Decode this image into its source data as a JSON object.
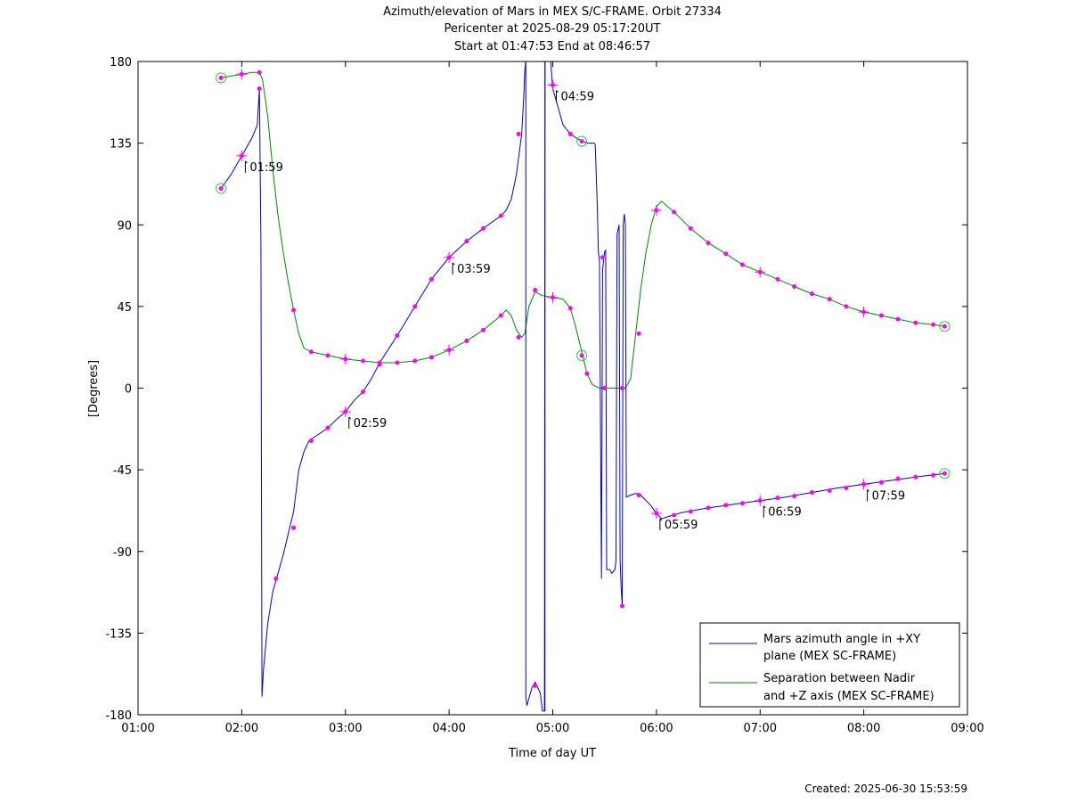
{
  "chart_data": {
    "type": "line",
    "title_lines": [
      "Azimuth/elevation of Mars in MEX S/C-FRAME.  Orbit 27334",
      "Pericenter at 2025-08-29 05:17:20UT",
      "Start at 01:47:53 End at 08:46:57"
    ],
    "xlabel": "Time of day UT",
    "ylabel": "[Degrees]",
    "xlim": [
      1,
      9
    ],
    "ylim": [
      -180,
      180
    ],
    "x_ticks": [
      1,
      2,
      3,
      4,
      5,
      6,
      7,
      8,
      9
    ],
    "x_tick_labels": [
      "01:00",
      "02:00",
      "03:00",
      "04:00",
      "05:00",
      "06:00",
      "07:00",
      "08:00",
      "09:00"
    ],
    "y_ticks": [
      180,
      135,
      90,
      45,
      0,
      -45,
      -90,
      -135,
      -180
    ],
    "y_tick_labels": [
      "180",
      "135",
      "90",
      "45",
      "0",
      "-45",
      "-90",
      "-135",
      "-180"
    ],
    "grid": false,
    "legend_position": "bottom-right",
    "series": [
      {
        "name": "Mars azimuth angle in +XY plane (MEX SC-FRAME)",
        "legend_lines": [
          "Mars azimuth angle in +XY",
          "plane (MEX SC-FRAME)"
        ],
        "color": "#0000cc",
        "points": [
          [
            1.8,
            110
          ],
          [
            1.9,
            118
          ],
          [
            2.0,
            128
          ],
          [
            2.1,
            138
          ],
          [
            2.15,
            145
          ],
          [
            2.17,
            165
          ],
          [
            2.185,
            80
          ],
          [
            2.19,
            -50
          ],
          [
            2.195,
            -170
          ],
          [
            2.21,
            -155
          ],
          [
            2.25,
            -130
          ],
          [
            2.3,
            -112
          ],
          [
            2.35,
            -102
          ],
          [
            2.4,
            -92
          ],
          [
            2.45,
            -80
          ],
          [
            2.5,
            -68
          ],
          [
            2.55,
            -45
          ],
          [
            2.6,
            -35
          ],
          [
            2.65,
            -29
          ],
          [
            2.7,
            -27
          ],
          [
            2.83,
            -22
          ],
          [
            2.9,
            -18
          ],
          [
            3.0,
            -13
          ],
          [
            3.08,
            -7
          ],
          [
            3.17,
            -2
          ],
          [
            3.25,
            5
          ],
          [
            3.33,
            14
          ],
          [
            3.5,
            29
          ],
          [
            3.67,
            45
          ],
          [
            3.83,
            60
          ],
          [
            4.0,
            72
          ],
          [
            4.17,
            81
          ],
          [
            4.33,
            88
          ],
          [
            4.5,
            95
          ],
          [
            4.55,
            98
          ],
          [
            4.6,
            104
          ],
          [
            4.65,
            118
          ],
          [
            4.7,
            140
          ],
          [
            4.72,
            160
          ],
          [
            4.73,
            175
          ],
          [
            4.74,
            180
          ]
        ],
        "break_after": 40,
        "points2": [
          [
            4.74,
            -170
          ],
          [
            4.75,
            -175
          ],
          [
            4.8,
            -165
          ],
          [
            4.83,
            -162
          ],
          [
            4.88,
            -168
          ],
          [
            4.9,
            -178
          ],
          [
            4.92,
            -178
          ],
          [
            4.925,
            180
          ]
        ],
        "points3": [
          [
            4.98,
            180
          ],
          [
            5.0,
            165
          ],
          [
            5.05,
            155
          ],
          [
            5.1,
            145
          ],
          [
            5.17,
            140
          ],
          [
            5.25,
            137
          ],
          [
            5.33,
            135
          ],
          [
            5.4,
            135
          ],
          [
            5.41,
            134
          ],
          [
            5.43,
            100
          ],
          [
            5.44,
            75
          ],
          [
            5.45,
            70
          ],
          [
            5.47,
            -105
          ],
          [
            5.48,
            65
          ],
          [
            5.49,
            70
          ],
          [
            5.5,
            75
          ],
          [
            5.51,
            76
          ],
          [
            5.52,
            -100
          ],
          [
            5.55,
            -100
          ],
          [
            5.57,
            -102
          ],
          [
            5.6,
            -100
          ],
          [
            5.61,
            -95
          ],
          [
            5.62,
            85
          ],
          [
            5.64,
            90
          ],
          [
            5.65,
            -95
          ],
          [
            5.66,
            -110
          ],
          [
            5.67,
            -120
          ],
          [
            5.68,
            90
          ],
          [
            5.69,
            96
          ],
          [
            5.7,
            90
          ],
          [
            5.71,
            -60
          ],
          [
            5.75,
            -59
          ],
          [
            5.8,
            -58
          ],
          [
            5.85,
            -59
          ],
          [
            5.9,
            -62
          ],
          [
            5.95,
            -65
          ],
          [
            6.0,
            -69
          ],
          [
            6.05,
            -72
          ],
          [
            6.1,
            -71
          ],
          [
            6.25,
            -68.5
          ],
          [
            6.5,
            -66
          ],
          [
            6.75,
            -64
          ],
          [
            7.0,
            -62
          ],
          [
            7.25,
            -60
          ],
          [
            7.5,
            -57.5
          ],
          [
            7.75,
            -55
          ],
          [
            8.0,
            -53
          ],
          [
            8.25,
            -51
          ],
          [
            8.5,
            -49
          ],
          [
            8.78,
            -47
          ]
        ],
        "markers": [
          [
            1.8,
            110
          ],
          [
            2.0,
            128
          ],
          [
            2.17,
            165
          ],
          [
            2.33,
            -105
          ],
          [
            2.5,
            -77
          ],
          [
            2.67,
            -29
          ],
          [
            2.83,
            -22
          ],
          [
            3.0,
            -13
          ],
          [
            3.17,
            -2
          ],
          [
            3.33,
            13
          ],
          [
            3.5,
            29
          ],
          [
            3.67,
            45
          ],
          [
            3.83,
            60
          ],
          [
            4.0,
            72
          ],
          [
            4.17,
            81
          ],
          [
            4.33,
            88
          ],
          [
            4.5,
            95
          ],
          [
            4.67,
            140
          ],
          [
            4.83,
            -164
          ],
          [
            5.0,
            167
          ],
          [
            5.17,
            140
          ],
          [
            5.28,
            136
          ],
          [
            5.48,
            72
          ],
          [
            5.67,
            -120
          ],
          [
            5.83,
            -59
          ],
          [
            6.0,
            -69
          ],
          [
            6.17,
            -70
          ],
          [
            6.33,
            -68
          ],
          [
            6.5,
            -66
          ],
          [
            6.67,
            -64.5
          ],
          [
            6.83,
            -63.5
          ],
          [
            7.0,
            -62
          ],
          [
            7.17,
            -60.5
          ],
          [
            7.33,
            -59.5
          ],
          [
            7.5,
            -57.5
          ],
          [
            7.67,
            -56.5
          ],
          [
            7.83,
            -55
          ],
          [
            8.0,
            -53
          ],
          [
            8.17,
            -52
          ],
          [
            8.33,
            -50
          ],
          [
            8.5,
            -49
          ],
          [
            8.67,
            -48
          ],
          [
            8.78,
            -47
          ]
        ],
        "plus_markers": [
          [
            2.0,
            128
          ],
          [
            3.0,
            -13
          ],
          [
            4.0,
            72
          ],
          [
            5.0,
            167
          ],
          [
            6.0,
            -69
          ],
          [
            7.0,
            -62
          ],
          [
            8.0,
            -53
          ]
        ],
        "circle_markers": [
          [
            1.8,
            110
          ],
          [
            5.28,
            136
          ],
          [
            8.78,
            -47
          ]
        ]
      },
      {
        "name": "Separation between Nadir and +Z axis (MEX SC-FRAME)",
        "legend_lines": [
          "Separation between Nadir",
          "and +Z axis (MEX SC-FRAME)"
        ],
        "color": "#008800",
        "points": [
          [
            1.8,
            171
          ],
          [
            1.9,
            172
          ],
          [
            2.0,
            173
          ],
          [
            2.1,
            174
          ],
          [
            2.17,
            174
          ],
          [
            2.2,
            170
          ],
          [
            2.25,
            150
          ],
          [
            2.3,
            120
          ],
          [
            2.35,
            95
          ],
          [
            2.4,
            75
          ],
          [
            2.45,
            58
          ],
          [
            2.5,
            43
          ],
          [
            2.55,
            30
          ],
          [
            2.6,
            22
          ],
          [
            2.67,
            20
          ],
          [
            2.83,
            18
          ],
          [
            3.0,
            16
          ],
          [
            3.17,
            15
          ],
          [
            3.33,
            14
          ],
          [
            3.5,
            14
          ],
          [
            3.67,
            15
          ],
          [
            3.83,
            17
          ],
          [
            4.0,
            21
          ],
          [
            4.17,
            26
          ],
          [
            4.33,
            32
          ],
          [
            4.5,
            40
          ],
          [
            4.55,
            43
          ],
          [
            4.6,
            40
          ],
          [
            4.65,
            32
          ],
          [
            4.7,
            28
          ],
          [
            4.73,
            30
          ],
          [
            4.77,
            45
          ],
          [
            4.83,
            53
          ],
          [
            4.9,
            51
          ],
          [
            5.0,
            50
          ],
          [
            5.1,
            49
          ],
          [
            5.17,
            44
          ],
          [
            5.22,
            34
          ],
          [
            5.28,
            20
          ],
          [
            5.33,
            8
          ],
          [
            5.38,
            2
          ],
          [
            5.45,
            0
          ],
          [
            5.55,
            0
          ],
          [
            5.65,
            0
          ],
          [
            5.7,
            0
          ],
          [
            5.75,
            5
          ],
          [
            5.8,
            30
          ],
          [
            5.85,
            55
          ],
          [
            5.9,
            75
          ],
          [
            5.95,
            90
          ],
          [
            6.0,
            100
          ],
          [
            6.05,
            103
          ],
          [
            6.17,
            97
          ],
          [
            6.33,
            88
          ],
          [
            6.5,
            80
          ],
          [
            6.67,
            74
          ],
          [
            6.83,
            68
          ],
          [
            7.0,
            64
          ],
          [
            7.17,
            60
          ],
          [
            7.33,
            56
          ],
          [
            7.5,
            52
          ],
          [
            7.67,
            49
          ],
          [
            7.83,
            45
          ],
          [
            8.0,
            42
          ],
          [
            8.17,
            40
          ],
          [
            8.33,
            38
          ],
          [
            8.5,
            36
          ],
          [
            8.67,
            35
          ],
          [
            8.78,
            34
          ]
        ],
        "markers": [
          [
            1.8,
            171
          ],
          [
            2.0,
            173
          ],
          [
            2.17,
            174
          ],
          [
            2.5,
            43
          ],
          [
            2.67,
            20
          ],
          [
            2.83,
            18
          ],
          [
            3.0,
            16
          ],
          [
            3.17,
            15
          ],
          [
            3.33,
            14
          ],
          [
            3.5,
            14
          ],
          [
            3.67,
            15
          ],
          [
            3.83,
            17
          ],
          [
            4.0,
            21
          ],
          [
            4.17,
            26
          ],
          [
            4.33,
            32
          ],
          [
            4.5,
            40
          ],
          [
            4.67,
            28
          ],
          [
            4.83,
            54
          ],
          [
            5.0,
            50
          ],
          [
            5.17,
            44
          ],
          [
            5.28,
            18
          ],
          [
            5.33,
            8
          ],
          [
            5.5,
            0
          ],
          [
            5.67,
            0
          ],
          [
            5.83,
            30
          ],
          [
            6.0,
            98
          ],
          [
            6.17,
            97
          ],
          [
            6.33,
            88
          ],
          [
            6.5,
            80
          ],
          [
            6.67,
            74
          ],
          [
            6.83,
            68
          ],
          [
            7.0,
            64
          ],
          [
            7.17,
            60
          ],
          [
            7.33,
            56
          ],
          [
            7.5,
            52
          ],
          [
            7.67,
            49
          ],
          [
            7.83,
            45
          ],
          [
            8.0,
            42
          ],
          [
            8.17,
            40
          ],
          [
            8.33,
            38
          ],
          [
            8.5,
            36
          ],
          [
            8.67,
            35
          ],
          [
            8.78,
            34
          ]
        ],
        "plus_markers": [
          [
            2.0,
            173
          ],
          [
            3.0,
            16
          ],
          [
            4.0,
            21
          ],
          [
            5.0,
            50
          ],
          [
            6.0,
            98
          ],
          [
            7.0,
            64
          ],
          [
            8.0,
            42
          ]
        ],
        "circle_markers": [
          [
            1.8,
            171
          ],
          [
            5.28,
            18
          ],
          [
            8.78,
            34
          ]
        ]
      }
    ],
    "annotations": [
      {
        "x": 2.0,
        "y": 128,
        "text": "01:59"
      },
      {
        "x": 3.0,
        "y": -13,
        "text": "02:59"
      },
      {
        "x": 4.0,
        "y": 72,
        "text": "03:59"
      },
      {
        "x": 5.0,
        "y": 167,
        "text": "04:59"
      },
      {
        "x": 6.0,
        "y": -69,
        "text": "05:59"
      },
      {
        "x": 7.0,
        "y": -62,
        "text": "06:59"
      },
      {
        "x": 8.0,
        "y": -53,
        "text": "07:59"
      }
    ],
    "colors": {
      "azimuth": "#0000cc",
      "separation": "#008800",
      "markers": "#ff00ff",
      "circles": "#33cc33"
    }
  },
  "footer": {
    "created": "Created: 2025-06-30 15:53:59"
  }
}
